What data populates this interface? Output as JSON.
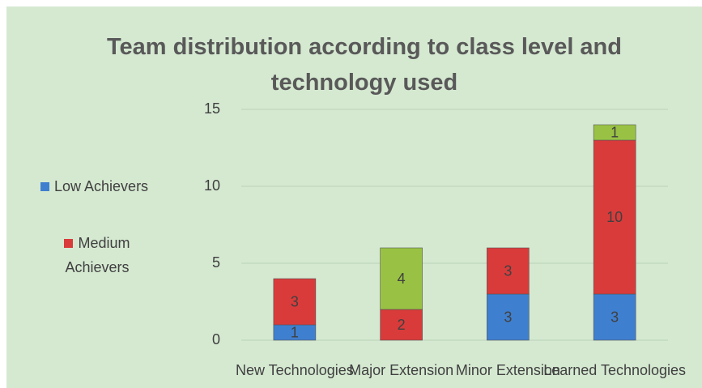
{
  "chart_data": {
    "type": "bar",
    "stacked": true,
    "title": "Team distribution according to class level and technology used",
    "categories": [
      "New Technologies",
      "Major Extension",
      "Minor Extension",
      "Learned Technologies"
    ],
    "series": [
      {
        "name": "Low Achievers",
        "color": "#3f7fcf",
        "values": [
          1,
          null,
          3,
          3
        ]
      },
      {
        "name": "Medium Achievers",
        "color": "#d93b3b",
        "values": [
          3,
          2,
          3,
          10
        ]
      },
      {
        "color": "#99c244",
        "values": [
          null,
          4,
          null,
          1
        ]
      }
    ],
    "ylim": [
      0,
      15
    ],
    "yticks": [
      0,
      5,
      10,
      15
    ],
    "grid": true,
    "legend": "left"
  }
}
